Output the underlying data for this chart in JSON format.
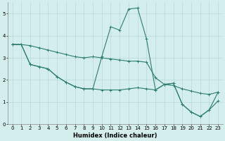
{
  "xlabel": "Humidex (Indice chaleur)",
  "x_values": [
    0,
    1,
    2,
    3,
    4,
    5,
    6,
    7,
    8,
    9,
    10,
    11,
    12,
    13,
    14,
    15,
    16,
    17,
    18,
    19,
    20,
    21,
    22,
    23
  ],
  "upper": [
    3.6,
    3.6,
    3.55,
    3.45,
    3.35,
    3.25,
    3.15,
    3.05,
    3.0,
    3.05,
    3.0,
    2.95,
    2.9,
    2.85,
    2.85,
    2.8,
    2.1,
    1.8,
    1.75,
    1.6,
    1.5,
    1.4,
    1.35,
    1.45
  ],
  "spiky": [
    3.6,
    3.6,
    2.7,
    2.6,
    2.5,
    2.15,
    1.9,
    1.7,
    1.6,
    1.6,
    3.05,
    4.4,
    4.25,
    5.2,
    5.25,
    3.85,
    1.55,
    1.8,
    1.85,
    0.9,
    0.55,
    0.35,
    0.65,
    1.05
  ],
  "lower": [
    3.6,
    3.6,
    2.7,
    2.6,
    2.5,
    2.15,
    1.9,
    1.7,
    1.6,
    1.6,
    1.55,
    1.55,
    1.55,
    1.6,
    1.65,
    1.6,
    1.55,
    1.8,
    1.85,
    0.9,
    0.55,
    0.35,
    0.65,
    1.45
  ],
  "line_color": "#2d7d6e",
  "bg_color": "#d4eeed",
  "grid_color": "#b8d8d4",
  "ylim": [
    0,
    5.5
  ],
  "xlim": [
    -0.5,
    23.5
  ],
  "yticks": [
    0,
    1,
    2,
    3,
    4,
    5
  ]
}
